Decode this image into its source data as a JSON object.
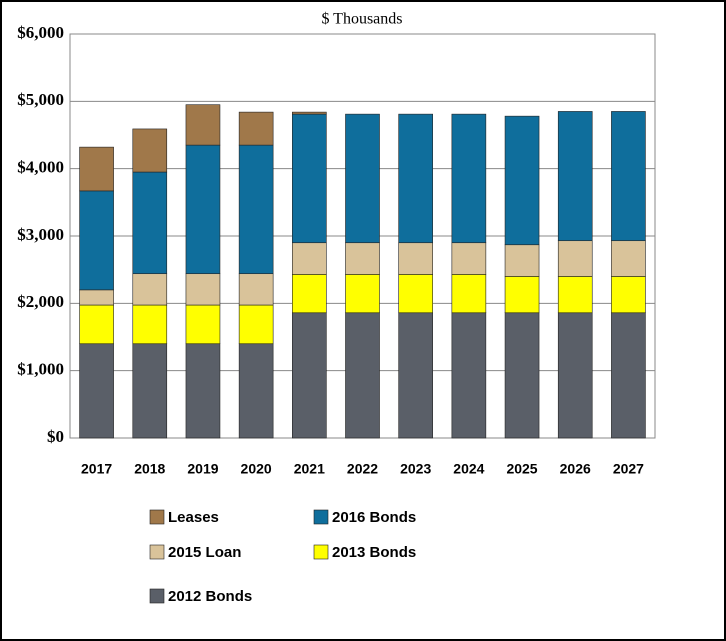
{
  "chart_data": {
    "type": "stacked_bar",
    "title": "$ Thousands",
    "categories": [
      "2017",
      "2018",
      "2019",
      "2020",
      "2021",
      "2022",
      "2023",
      "2024",
      "2025",
      "2026",
      "2027"
    ],
    "series": [
      {
        "name": "2012 Bonds",
        "color": "#5a5f68",
        "values": [
          1400,
          1400,
          1400,
          1400,
          1860,
          1860,
          1860,
          1860,
          1860,
          1860,
          1860
        ]
      },
      {
        "name": "2013 Bonds",
        "color": "#ffff00",
        "values": [
          575,
          575,
          575,
          575,
          570,
          570,
          570,
          570,
          540,
          540,
          540
        ]
      },
      {
        "name": "2015 Loan",
        "color": "#d9c39a",
        "values": [
          225,
          465,
          465,
          465,
          470,
          470,
          470,
          470,
          470,
          530,
          530
        ]
      },
      {
        "name": "2016 Bonds",
        "color": "#0f6e9c",
        "values": [
          1470,
          1510,
          1910,
          1910,
          1910,
          1910,
          1910,
          1910,
          1910,
          1920,
          1920
        ]
      },
      {
        "name": "Leases",
        "color": "#a0784a",
        "values": [
          650,
          640,
          600,
          490,
          30,
          0,
          0,
          0,
          0,
          0,
          0
        ]
      }
    ],
    "ylim": [
      0,
      6000
    ],
    "yticks": [
      {
        "value": 0,
        "label": "$0"
      },
      {
        "value": 1000,
        "label": "$1,000"
      },
      {
        "value": 2000,
        "label": "$2,000"
      },
      {
        "value": 3000,
        "label": "$3,000"
      },
      {
        "value": 4000,
        "label": "$4,000"
      },
      {
        "value": 5000,
        "label": "$5,000"
      },
      {
        "value": 6000,
        "label": "$6,000"
      }
    ],
    "grid": true
  }
}
